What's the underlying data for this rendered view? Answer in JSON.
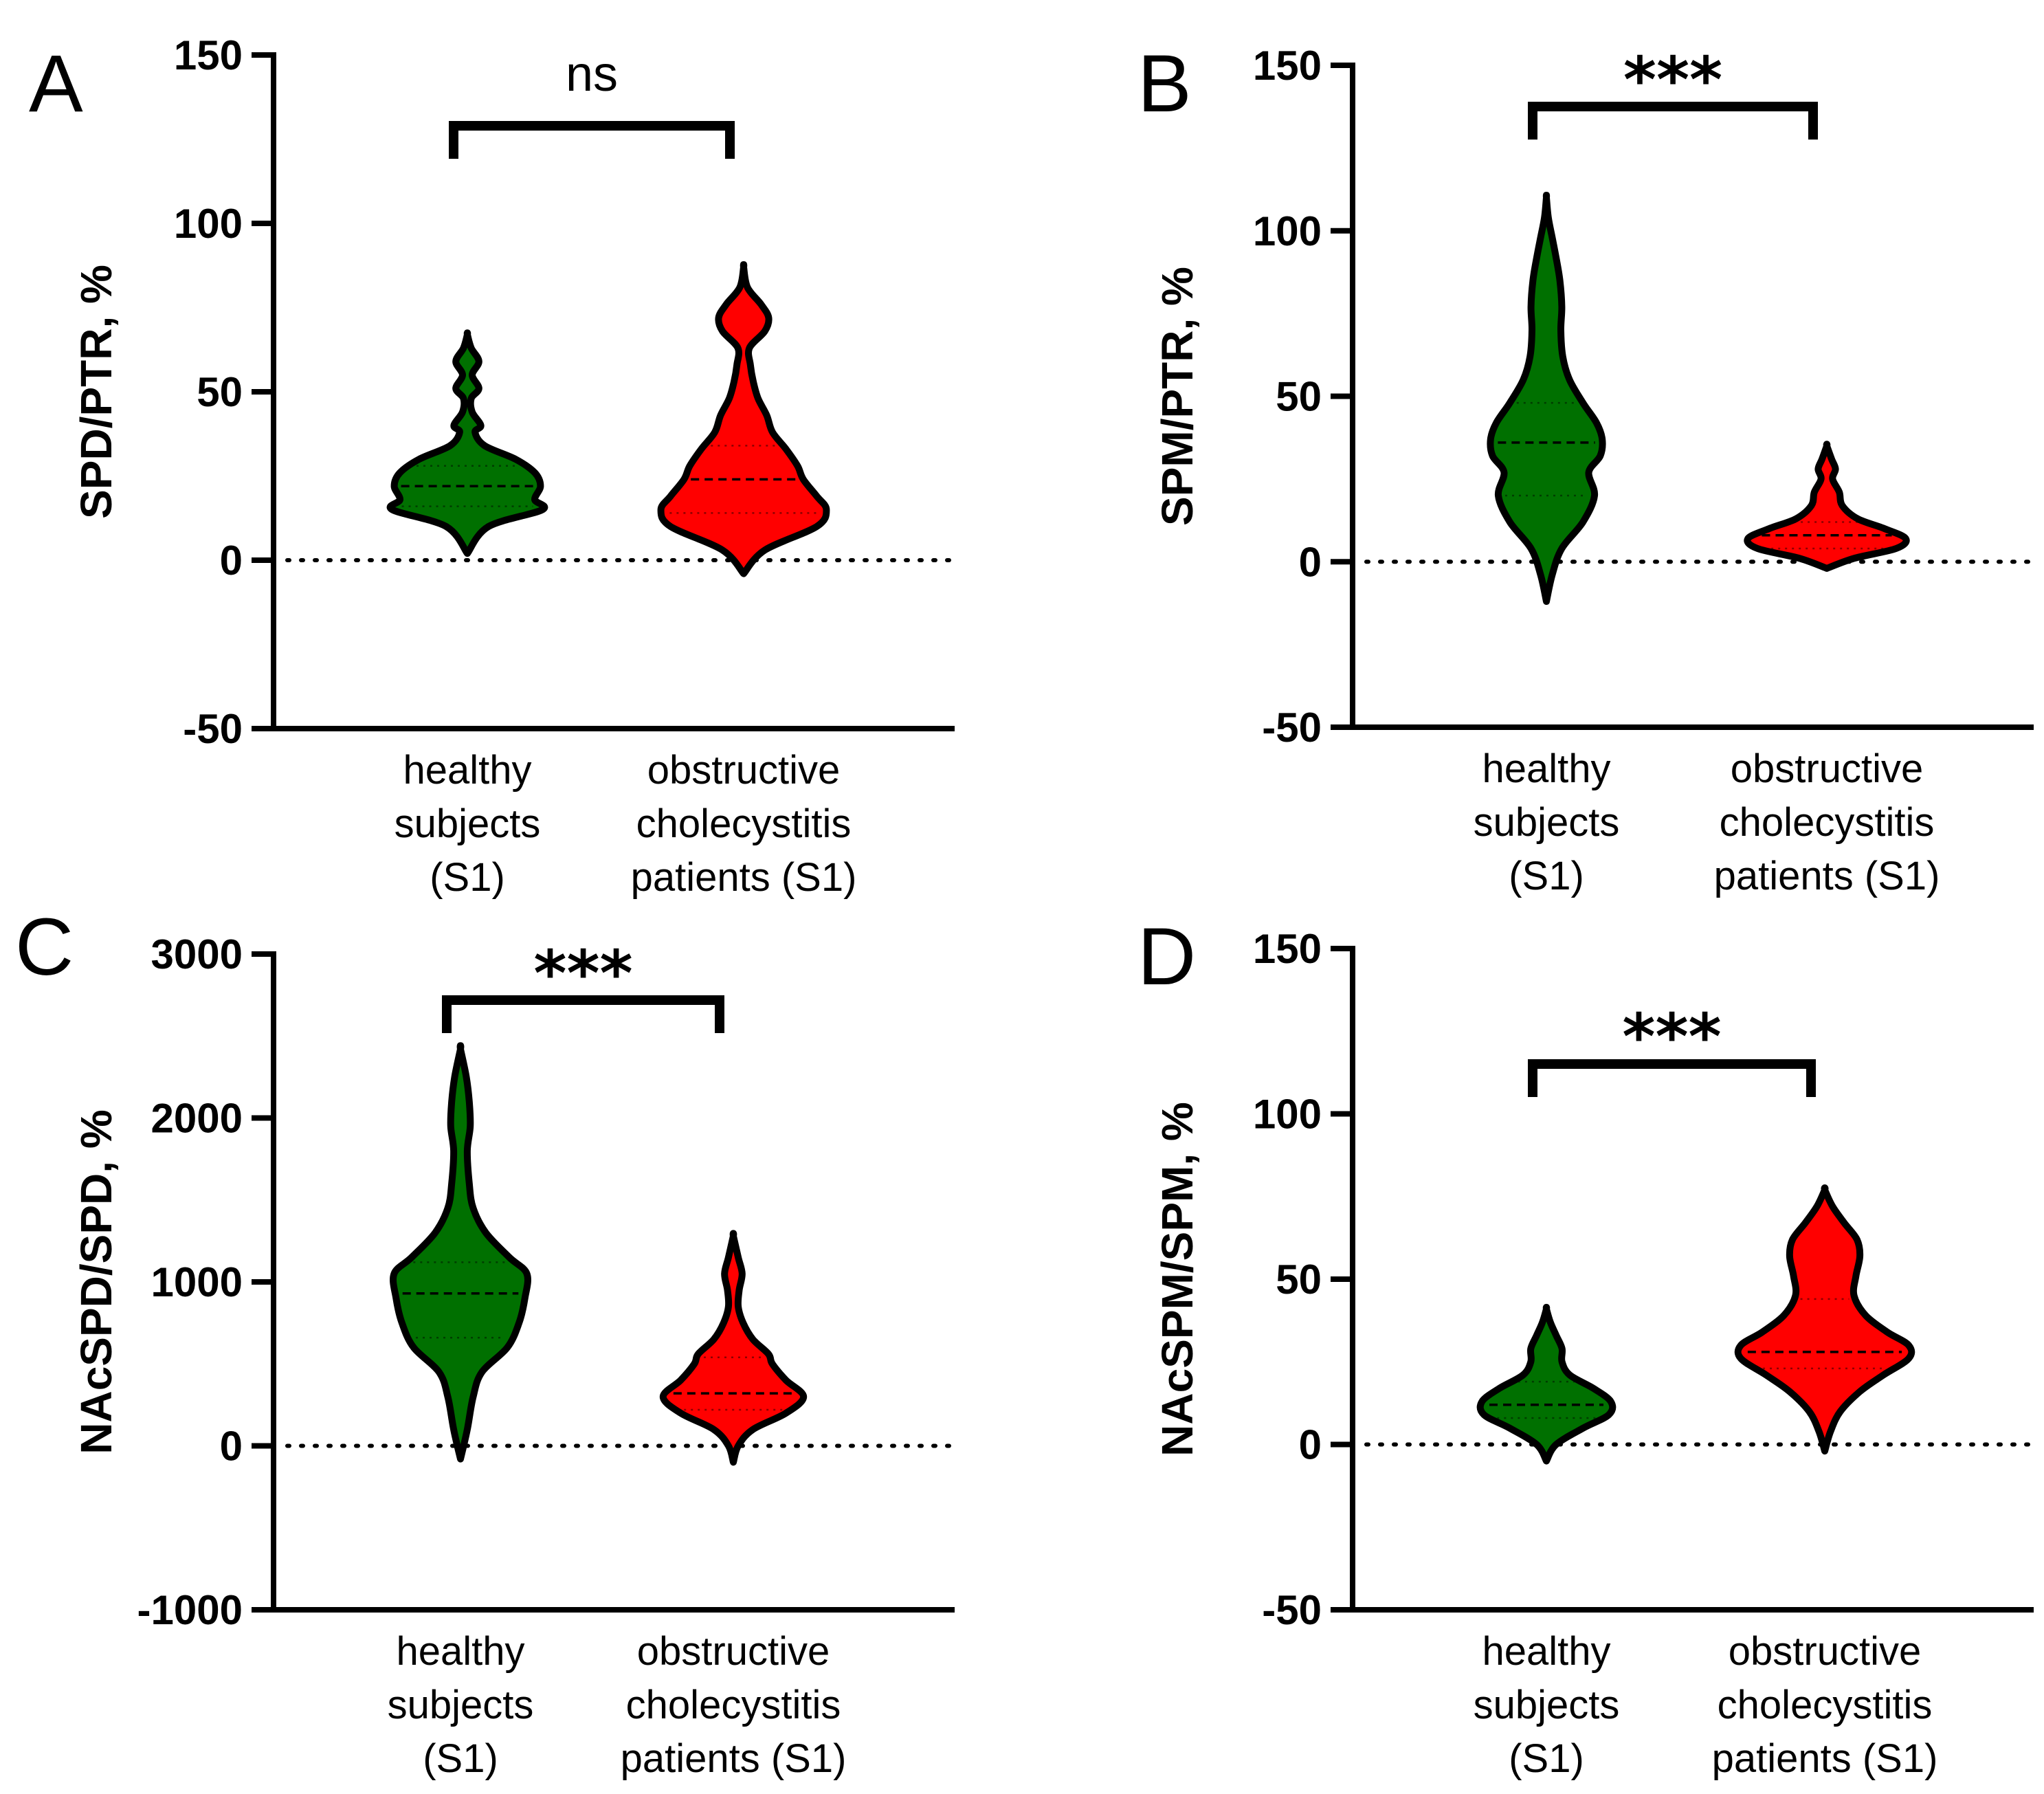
{
  "colors": {
    "group1": "#007000",
    "group2": "#ff0000"
  },
  "chart_data": [
    {
      "panel": "A",
      "type": "violin",
      "ylabel": "SPD/PTR, %",
      "ylim": [
        -50,
        150
      ],
      "yticks": [
        {
          "v": -50,
          "label": "-50"
        },
        {
          "v": 0,
          "label": "0"
        },
        {
          "v": 50,
          "label": "50"
        },
        {
          "v": 100,
          "label": "100"
        },
        {
          "v": 150,
          "label": "150"
        }
      ],
      "significance": "ns",
      "categories": [
        {
          "lines": [
            "healthy",
            "subjects",
            "(S1)"
          ],
          "color": "#007000",
          "median": 22,
          "q1": 16,
          "q3": 28,
          "profile": [
            [
              2,
              0
            ],
            [
              10,
              0.22
            ],
            [
              15,
              0.78
            ],
            [
              18,
              0.7
            ],
            [
              22,
              0.76
            ],
            [
              26,
              0.7
            ],
            [
              30,
              0.5
            ],
            [
              34,
              0.18
            ],
            [
              38,
              0.08
            ],
            [
              40,
              0.14
            ],
            [
              44,
              0.05
            ],
            [
              48,
              0.04
            ],
            [
              51,
              0.12
            ],
            [
              55,
              0.05
            ],
            [
              59,
              0.12
            ],
            [
              63,
              0.04
            ],
            [
              67,
              0
            ]
          ]
        },
        {
          "lines": [
            "obstructive",
            "cholecystitis",
            "patients (S1)"
          ],
          "color": "#ff0000",
          "median": 24,
          "q1": 14,
          "q3": 34,
          "profile": [
            [
              -4,
              0
            ],
            [
              3,
              0.22
            ],
            [
              10,
              0.76
            ],
            [
              15,
              0.86
            ],
            [
              19,
              0.76
            ],
            [
              24,
              0.62
            ],
            [
              28,
              0.56
            ],
            [
              33,
              0.44
            ],
            [
              38,
              0.3
            ],
            [
              43,
              0.24
            ],
            [
              48,
              0.15
            ],
            [
              53,
              0.1
            ],
            [
              58,
              0.07
            ],
            [
              63,
              0.06
            ],
            [
              68,
              0.22
            ],
            [
              72,
              0.26
            ],
            [
              76,
              0.18
            ],
            [
              81,
              0.04
            ],
            [
              87,
              0
            ]
          ]
        }
      ]
    },
    {
      "panel": "B",
      "type": "violin",
      "ylabel": "SPM/PTR, %",
      "ylim": [
        -50,
        150
      ],
      "yticks": [
        {
          "v": -50,
          "label": "-50"
        },
        {
          "v": 0,
          "label": "0"
        },
        {
          "v": 50,
          "label": "50"
        },
        {
          "v": 100,
          "label": "100"
        },
        {
          "v": 150,
          "label": "150"
        }
      ],
      "significance": "***",
      "categories": [
        {
          "lines": [
            "healthy",
            "subjects",
            "(S1)"
          ],
          "color": "#007000",
          "median": 36,
          "q1": 20,
          "q3": 48,
          "profile": [
            [
              -12,
              0
            ],
            [
              -4,
              0.06
            ],
            [
              4,
              0.16
            ],
            [
              12,
              0.38
            ],
            [
              20,
              0.5
            ],
            [
              27,
              0.44
            ],
            [
              32,
              0.56
            ],
            [
              37,
              0.58
            ],
            [
              42,
              0.52
            ],
            [
              48,
              0.38
            ],
            [
              55,
              0.24
            ],
            [
              62,
              0.17
            ],
            [
              70,
              0.15
            ],
            [
              77,
              0.16
            ],
            [
              85,
              0.14
            ],
            [
              92,
              0.1
            ],
            [
              98,
              0.06
            ],
            [
              104,
              0.02
            ],
            [
              110,
              0
            ]
          ]
        },
        {
          "lines": [
            "obstructive",
            "cholecystitis",
            "patients (S1)"
          ],
          "color": "#ff0000",
          "median": 8,
          "q1": 4,
          "q3": 12,
          "profile": [
            [
              -2,
              0
            ],
            [
              1,
              0.28
            ],
            [
              4,
              0.72
            ],
            [
              7,
              0.82
            ],
            [
              10,
              0.6
            ],
            [
              13,
              0.32
            ],
            [
              17,
              0.16
            ],
            [
              21,
              0.13
            ],
            [
              25,
              0.06
            ],
            [
              28,
              0.09
            ],
            [
              31,
              0.05
            ],
            [
              35,
              0
            ]
          ]
        }
      ]
    },
    {
      "panel": "C",
      "type": "violin",
      "ylabel": "NAcSPD/SPD, %",
      "ylim": [
        -1000,
        3000
      ],
      "yticks": [
        {
          "v": -1000,
          "label": "-1000"
        },
        {
          "v": 0,
          "label": "0"
        },
        {
          "v": 1000,
          "label": "1000"
        },
        {
          "v": 2000,
          "label": "2000"
        },
        {
          "v": 3000,
          "label": "3000"
        }
      ],
      "significance": "***",
      "categories": [
        {
          "lines": [
            "healthy",
            "subjects",
            "(S1)"
          ],
          "color": "#007000",
          "median": 930,
          "q1": 660,
          "q3": 1120,
          "profile": [
            [
              -80,
              0
            ],
            [
              100,
              0.07
            ],
            [
              300,
              0.13
            ],
            [
              450,
              0.22
            ],
            [
              600,
              0.48
            ],
            [
              750,
              0.6
            ],
            [
              900,
              0.66
            ],
            [
              1050,
              0.68
            ],
            [
              1150,
              0.5
            ],
            [
              1300,
              0.26
            ],
            [
              1450,
              0.13
            ],
            [
              1600,
              0.09
            ],
            [
              1800,
              0.07
            ],
            [
              1950,
              0.1
            ],
            [
              2100,
              0.09
            ],
            [
              2250,
              0.06
            ],
            [
              2420,
              0
            ]
          ]
        },
        {
          "lines": [
            "obstructive",
            "cholecystitis",
            "patients (S1)"
          ],
          "color": "#ff0000",
          "median": 320,
          "q1": 220,
          "q3": 540,
          "profile": [
            [
              -100,
              0
            ],
            [
              0,
              0.05
            ],
            [
              100,
              0.2
            ],
            [
              200,
              0.54
            ],
            [
              300,
              0.72
            ],
            [
              400,
              0.54
            ],
            [
              500,
              0.4
            ],
            [
              560,
              0.36
            ],
            [
              650,
              0.2
            ],
            [
              750,
              0.1
            ],
            [
              850,
              0.05
            ],
            [
              950,
              0.06
            ],
            [
              1050,
              0.09
            ],
            [
              1150,
              0.05
            ],
            [
              1280,
              0
            ]
          ]
        }
      ]
    },
    {
      "panel": "D",
      "type": "violin",
      "ylabel": "NAcSPM/SPM, %",
      "ylim": [
        -50,
        150
      ],
      "yticks": [
        {
          "v": -50,
          "label": "-50"
        },
        {
          "v": 0,
          "label": "0"
        },
        {
          "v": 50,
          "label": "50"
        },
        {
          "v": 100,
          "label": "100"
        },
        {
          "v": 150,
          "label": "150"
        }
      ],
      "significance": "***",
      "categories": [
        {
          "lines": [
            "healthy",
            "subjects",
            "(S1)"
          ],
          "color": "#007000",
          "median": 12,
          "q1": 8,
          "q3": 19,
          "profile": [
            [
              -5,
              0
            ],
            [
              0,
              0.1
            ],
            [
              5,
              0.38
            ],
            [
              9,
              0.64
            ],
            [
              13,
              0.66
            ],
            [
              17,
              0.48
            ],
            [
              21,
              0.24
            ],
            [
              25,
              0.16
            ],
            [
              29,
              0.16
            ],
            [
              33,
              0.1
            ],
            [
              37,
              0.04
            ],
            [
              41,
              0
            ]
          ]
        },
        {
          "lines": [
            "obstructive",
            "cholecystitis",
            "patients (S1)"
          ],
          "color": "#ff0000",
          "median": 28,
          "q1": 23,
          "q3": 44,
          "profile": [
            [
              -2,
              0
            ],
            [
              4,
              0.06
            ],
            [
              10,
              0.16
            ],
            [
              16,
              0.36
            ],
            [
              21,
              0.6
            ],
            [
              26,
              0.86
            ],
            [
              30,
              0.86
            ],
            [
              34,
              0.64
            ],
            [
              39,
              0.42
            ],
            [
              45,
              0.3
            ],
            [
              51,
              0.32
            ],
            [
              57,
              0.36
            ],
            [
              62,
              0.33
            ],
            [
              67,
              0.2
            ],
            [
              72,
              0.08
            ],
            [
              77,
              0
            ]
          ]
        }
      ]
    }
  ]
}
